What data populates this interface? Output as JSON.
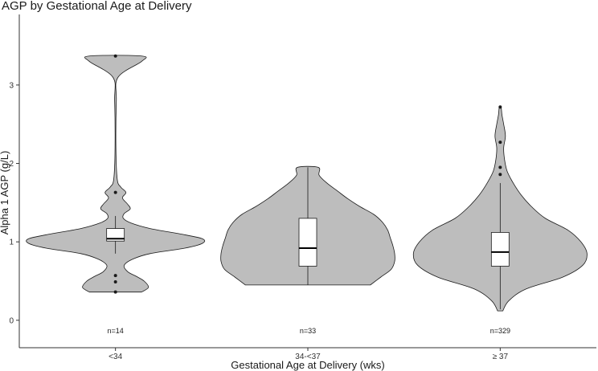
{
  "chart_data": {
    "type": "violin",
    "title": "AGP by Gestational Age at Delivery",
    "xlabel": "Gestational Age at Delivery (wks)",
    "ylabel": "Alpha 1 AGP (g/L)",
    "ylim": [
      -0.35,
      3.9
    ],
    "yticks": [
      0,
      1,
      2,
      3
    ],
    "categories": [
      "<34",
      "34-<37",
      "≥ 37"
    ],
    "groups": [
      {
        "category": "<34",
        "n_label": "n=14",
        "box": {
          "q1": 1.01,
          "median": 1.04,
          "q3": 1.17,
          "whisker_low": 0.85,
          "whisker_high": 1.33
        },
        "outliers": [
          3.37,
          1.63,
          0.57,
          0.49,
          0.36
        ],
        "density": [
          [
            0.36,
            0.3
          ],
          [
            0.42,
            0.38
          ],
          [
            0.5,
            0.33
          ],
          [
            0.56,
            0.24
          ],
          [
            0.62,
            0.14
          ],
          [
            0.7,
            0.1
          ],
          [
            0.78,
            0.2
          ],
          [
            0.85,
            0.4
          ],
          [
            0.92,
            0.8
          ],
          [
            0.98,
            1.0
          ],
          [
            1.04,
            1.0
          ],
          [
            1.1,
            0.75
          ],
          [
            1.17,
            0.4
          ],
          [
            1.24,
            0.18
          ],
          [
            1.3,
            0.09
          ],
          [
            1.36,
            0.1
          ],
          [
            1.42,
            0.17
          ],
          [
            1.48,
            0.14
          ],
          [
            1.56,
            0.08
          ],
          [
            1.63,
            0.12
          ],
          [
            1.7,
            0.06
          ],
          [
            1.8,
            0.02
          ],
          [
            2.2,
            0.005
          ],
          [
            2.8,
            0.01
          ],
          [
            3.1,
            0.03
          ],
          [
            3.3,
            0.3
          ],
          [
            3.37,
            0.3
          ]
        ]
      },
      {
        "category": "34-<37",
        "n_label": "n=33",
        "box": {
          "q1": 0.69,
          "median": 0.92,
          "q3": 1.3,
          "whisker_low": 0.45,
          "whisker_high": 1.95
        },
        "outliers": [],
        "density": [
          [
            0.45,
            0.72
          ],
          [
            0.55,
            0.84
          ],
          [
            0.65,
            0.96
          ],
          [
            0.75,
            1.0
          ],
          [
            0.85,
            1.0
          ],
          [
            0.95,
            0.98
          ],
          [
            1.05,
            0.95
          ],
          [
            1.15,
            0.92
          ],
          [
            1.25,
            0.86
          ],
          [
            1.35,
            0.76
          ],
          [
            1.45,
            0.6
          ],
          [
            1.55,
            0.46
          ],
          [
            1.65,
            0.34
          ],
          [
            1.75,
            0.22
          ],
          [
            1.85,
            0.13
          ],
          [
            1.95,
            0.12
          ]
        ]
      },
      {
        "category": "≥ 37",
        "n_label": "n=329",
        "box": {
          "q1": 0.69,
          "median": 0.87,
          "q3": 1.12,
          "whisker_low": 0.14,
          "whisker_high": 1.75
        },
        "outliers": [
          2.72,
          2.27,
          1.95,
          1.86
        ],
        "density": [
          [
            0.12,
            0.03
          ],
          [
            0.25,
            0.1
          ],
          [
            0.4,
            0.3
          ],
          [
            0.55,
            0.72
          ],
          [
            0.7,
            0.95
          ],
          [
            0.85,
            1.0
          ],
          [
            1.0,
            0.93
          ],
          [
            1.15,
            0.78
          ],
          [
            1.3,
            0.52
          ],
          [
            1.45,
            0.36
          ],
          [
            1.6,
            0.24
          ],
          [
            1.75,
            0.15
          ],
          [
            1.9,
            0.08
          ],
          [
            2.05,
            0.05
          ],
          [
            2.2,
            0.04
          ],
          [
            2.35,
            0.06
          ],
          [
            2.5,
            0.04
          ],
          [
            2.62,
            0.02
          ],
          [
            2.72,
            0.01
          ]
        ]
      }
    ]
  }
}
